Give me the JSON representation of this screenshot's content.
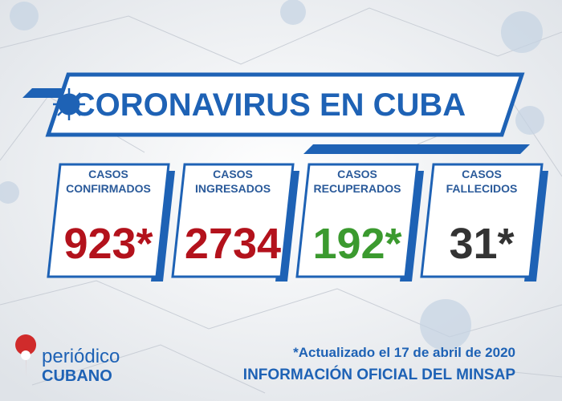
{
  "header": {
    "title": "CORONAVIRUS EN CUBA"
  },
  "stats": [
    {
      "label": [
        "CASOS",
        "CONFIRMADOS"
      ],
      "value": "923*"
    },
    {
      "label": [
        "CASOS",
        "INGRESADOS"
      ],
      "value": "2734"
    },
    {
      "label": [
        "CASOS",
        "RECUPERADOS"
      ],
      "value": "192*"
    },
    {
      "label": [
        "CASOS",
        "FALLECIDOS"
      ],
      "value": "31*"
    }
  ],
  "footer": {
    "brand": [
      "periódico",
      "CUBANO"
    ],
    "note": "*Actualizado el 17 de abril de 2020",
    "source": "INFORMACIÓN OFICIAL DEL MINSAP"
  }
}
